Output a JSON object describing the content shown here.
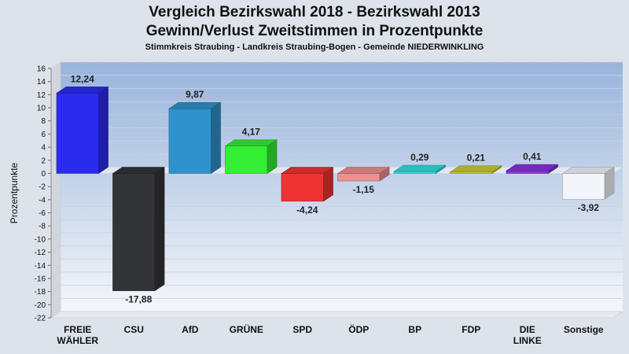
{
  "title_line1": "Vergleich Bezirkswahl 2018 - Bezirkswahl 2013",
  "title_line2": "Gewinn/Verlust Zweitstimmen in Prozentpunkte",
  "subtitle": "Stimmkreis Straubing - Landkreis Straubing-Bogen - Gemeinde NIEDERWINKLING",
  "chart_data": {
    "type": "bar",
    "ylabel": "Prozentpunkte",
    "xlabel": "",
    "ylim": [
      -22,
      16
    ],
    "yticks": [
      16,
      14,
      12,
      10,
      8,
      6,
      4,
      2,
      0,
      -2,
      -4,
      -6,
      -8,
      -10,
      -12,
      -14,
      -16,
      -18,
      -20,
      -22
    ],
    "grid": true,
    "categories": [
      [
        "FREIE",
        "WÄHLER"
      ],
      [
        "CSU"
      ],
      [
        "AfD"
      ],
      [
        "GRÜNE"
      ],
      [
        "SPD"
      ],
      [
        "ÖDP"
      ],
      [
        "BP"
      ],
      [
        "FDP"
      ],
      [
        "DIE",
        "LINKE"
      ],
      [
        "Sonstige"
      ]
    ],
    "values": [
      12.24,
      -17.88,
      9.87,
      4.17,
      -4.24,
      -1.15,
      0.29,
      0.21,
      0.41,
      -3.92
    ],
    "value_labels": [
      "12,24",
      "-17,88",
      "9,87",
      "4,17",
      "-4,24",
      "-1,15",
      "0,29",
      "0,21",
      "0,41",
      "-3,92"
    ],
    "colors": [
      "#2b2bf0",
      "#333438",
      "#2f92cc",
      "#33ee33",
      "#ee3333",
      "#ee9090",
      "#33dddd",
      "#cccc33",
      "#8833dd",
      "#f3f5fa"
    ]
  }
}
